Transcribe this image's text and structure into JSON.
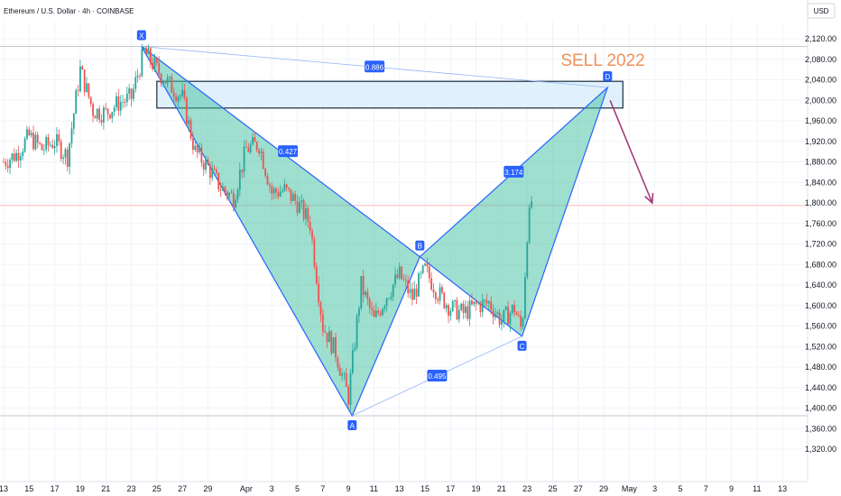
{
  "header": {
    "symbol_title": "Ethereum / U.S. Dollar · 4h · COINBASE"
  },
  "currency_label": "USD",
  "annotation": {
    "text": "SELL 2022"
  },
  "chart_data": {
    "type": "candlestick",
    "y_ticks": [
      "2,120.00",
      "2,080.00",
      "2,040.00",
      "2,000.00",
      "1,960.00",
      "1,920.00",
      "1,880.00",
      "1,840.00",
      "1,800.00",
      "1,760.00",
      "1,720.00",
      "1,680.00",
      "1,640.00",
      "1,600.00",
      "1,560.00",
      "1,520.00",
      "1,480.00",
      "1,440.00",
      "1,400.00",
      "1,360.00",
      "1,320.00"
    ],
    "y_values": [
      2120,
      2080,
      2040,
      2000,
      1960,
      1920,
      1880,
      1840,
      1800,
      1760,
      1720,
      1680,
      1640,
      1600,
      1560,
      1520,
      1480,
      1440,
      1400,
      1360,
      1320
    ],
    "ylim": [
      1310,
      2150
    ],
    "x_ticks": [
      "13",
      "15",
      "17",
      "19",
      "21",
      "23",
      "25",
      "27",
      "29",
      "Apr",
      "3",
      "5",
      "7",
      "9",
      "11",
      "13",
      "15",
      "17",
      "19",
      "21",
      "23",
      "25",
      "27",
      "29",
      "May",
      "3",
      "5",
      "7",
      "9",
      "11",
      "13"
    ],
    "x_day_index": [
      0,
      2,
      4,
      6,
      8,
      10,
      12,
      14,
      16,
      19,
      21,
      23,
      25,
      27,
      29,
      31,
      33,
      35,
      37,
      39,
      41,
      43,
      45,
      47,
      49,
      51,
      53,
      55,
      57,
      59,
      61
    ],
    "harmonic_points": [
      {
        "label": "X",
        "day": 10.8,
        "price": 2105
      },
      {
        "label": "A",
        "day": 27.3,
        "price": 1385
      },
      {
        "label": "B",
        "day": 32.6,
        "price": 1695
      },
      {
        "label": "C",
        "day": 40.6,
        "price": 1540
      },
      {
        "label": "D",
        "day": 47.3,
        "price": 2025
      }
    ],
    "ratios": [
      {
        "label": "0.886"
      },
      {
        "label": "0.427"
      },
      {
        "label": "3.174"
      },
      {
        "label": "0.495"
      }
    ],
    "sell_zone": {
      "price_top": 2037,
      "price_bottom": 1985,
      "day_start": 12.0,
      "day_end": 48.5
    },
    "horizontal_levels": [
      2105,
      1385
    ],
    "current_price_line": 1795,
    "candle_path": [
      [
        0,
        1880
      ],
      [
        1,
        1895
      ],
      [
        2,
        1930
      ],
      [
        3,
        1905
      ],
      [
        4,
        1920
      ],
      [
        5,
        1890
      ],
      [
        6,
        2060
      ],
      [
        7,
        1980
      ],
      [
        8,
        1975
      ],
      [
        9,
        1995
      ],
      [
        10,
        2005
      ],
      [
        11,
        2095
      ],
      [
        12,
        2060
      ],
      [
        13,
        2030
      ],
      [
        14,
        2005
      ],
      [
        15,
        1900
      ],
      [
        16,
        1870
      ],
      [
        17,
        1830
      ],
      [
        18,
        1810
      ],
      [
        19,
        1905
      ],
      [
        20,
        1915
      ],
      [
        21,
        1820
      ],
      [
        22,
        1825
      ],
      [
        23,
        1800
      ],
      [
        24,
        1760
      ],
      [
        25,
        1560
      ],
      [
        26,
        1510
      ],
      [
        27,
        1420
      ],
      [
        28,
        1640
      ],
      [
        29,
        1570
      ],
      [
        30,
        1620
      ],
      [
        31,
        1660
      ],
      [
        32,
        1615
      ],
      [
        33,
        1670
      ],
      [
        34,
        1625
      ],
      [
        35,
        1595
      ],
      [
        36,
        1585
      ],
      [
        37,
        1600
      ],
      [
        38,
        1605
      ],
      [
        39,
        1570
      ],
      [
        40,
        1595
      ],
      [
        40.6,
        1550
      ],
      [
        41,
        1740
      ],
      [
        41.4,
        1815
      ]
    ],
    "projection_arrow": {
      "from": {
        "day": 47.5,
        "price": 2000
      },
      "to": {
        "day": 50.8,
        "price": 1800
      }
    },
    "colors": {
      "up": "#26a69a",
      "down": "#ef5350",
      "pattern_fill": "#3fbfa0",
      "pattern_line": "#2962ff",
      "zone_fill": "#dbeefc",
      "arrow": "#a23c7a",
      "annotation": "#f0915a"
    }
  }
}
